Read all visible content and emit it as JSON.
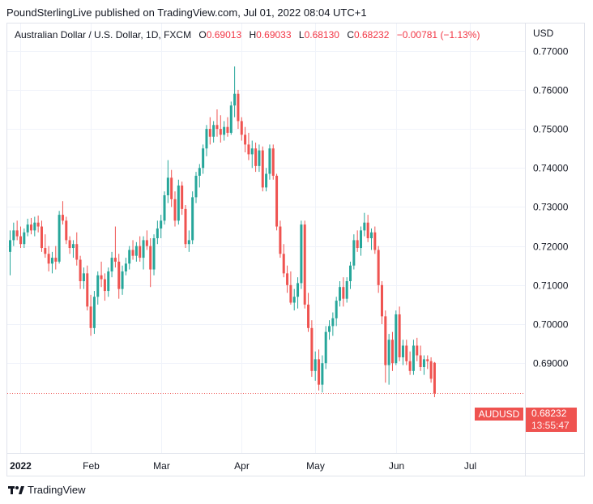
{
  "header": {
    "published": "PoundSterlingLive published on TradingView.com, Jul 01, 2022 08:04 UTC+1"
  },
  "legend": {
    "symbol": "Australian Dollar / U.S. Dollar, 1D, FXCM",
    "o_label": "O",
    "o": "0.69013",
    "h_label": "H",
    "h": "0.69033",
    "l_label": "L",
    "l": "0.68130",
    "c_label": "C",
    "c": "0.68232",
    "change": "−0.00781 (−1.13%)"
  },
  "axis": {
    "currency": "USD"
  },
  "last_price": {
    "symbol": "AUDUSD",
    "price": "0.68232",
    "countdown": "13:55:47"
  },
  "footer": {
    "brand": "TradingView"
  },
  "colors": {
    "up": "#26a69a",
    "down": "#ef5350",
    "grid": "#f0f3fa",
    "text": "#131722"
  },
  "chart_data": {
    "type": "candlestick",
    "ylim": [
      0.667,
      0.777
    ],
    "y_ticks": [
      "0.77000",
      "0.76000",
      "0.75000",
      "0.74000",
      "0.73000",
      "0.72000",
      "0.71000",
      "0.70000",
      "0.69000"
    ],
    "x_labels": [
      {
        "label": "2022",
        "index": 3
      },
      {
        "label": "Feb",
        "index": 23
      },
      {
        "label": "Mar",
        "index": 43
      },
      {
        "label": "Apr",
        "index": 66
      },
      {
        "label": "May",
        "index": 87
      },
      {
        "label": "Jun",
        "index": 110
      },
      {
        "label": "Jul",
        "index": 131
      }
    ],
    "ohlc": [
      [
        0.7185,
        0.724,
        0.7125,
        0.7215
      ],
      [
        0.7215,
        0.726,
        0.72,
        0.724
      ],
      [
        0.724,
        0.7265,
        0.7215,
        0.7225
      ],
      [
        0.7225,
        0.725,
        0.7195,
        0.7205
      ],
      [
        0.7205,
        0.7245,
        0.7195,
        0.7235
      ],
      [
        0.7235,
        0.727,
        0.7225,
        0.7255
      ],
      [
        0.7255,
        0.7272,
        0.723,
        0.724
      ],
      [
        0.724,
        0.7275,
        0.7225,
        0.726
      ],
      [
        0.726,
        0.7278,
        0.7235,
        0.725
      ],
      [
        0.725,
        0.7265,
        0.7185,
        0.7195
      ],
      [
        0.7195,
        0.723,
        0.717,
        0.718
      ],
      [
        0.718,
        0.72,
        0.7135,
        0.7155
      ],
      [
        0.7155,
        0.7185,
        0.713,
        0.717
      ],
      [
        0.717,
        0.72,
        0.714,
        0.716
      ],
      [
        0.716,
        0.729,
        0.7155,
        0.728
      ],
      [
        0.728,
        0.7315,
        0.7255,
        0.7265
      ],
      [
        0.7265,
        0.7275,
        0.7205,
        0.7215
      ],
      [
        0.7215,
        0.7225,
        0.718,
        0.7195
      ],
      [
        0.7195,
        0.7215,
        0.717,
        0.7205
      ],
      [
        0.7205,
        0.7235,
        0.715,
        0.7165
      ],
      [
        0.7165,
        0.7175,
        0.709,
        0.711
      ],
      [
        0.711,
        0.7145,
        0.709,
        0.713
      ],
      [
        0.713,
        0.715,
        0.7035,
        0.7045
      ],
      [
        0.7045,
        0.7075,
        0.697,
        0.699
      ],
      [
        0.699,
        0.7085,
        0.6975,
        0.707
      ],
      [
        0.707,
        0.7135,
        0.705,
        0.7125
      ],
      [
        0.7125,
        0.716,
        0.7095,
        0.7115
      ],
      [
        0.7115,
        0.713,
        0.706,
        0.7085
      ],
      [
        0.7085,
        0.7145,
        0.707,
        0.7135
      ],
      [
        0.7135,
        0.7185,
        0.712,
        0.717
      ],
      [
        0.717,
        0.725,
        0.7145,
        0.716
      ],
      [
        0.716,
        0.718,
        0.7065,
        0.709
      ],
      [
        0.709,
        0.715,
        0.7075,
        0.7135
      ],
      [
        0.7135,
        0.717,
        0.7125,
        0.7155
      ],
      [
        0.7155,
        0.72,
        0.714,
        0.719
      ],
      [
        0.719,
        0.7215,
        0.7165,
        0.7175
      ],
      [
        0.7175,
        0.721,
        0.716,
        0.72
      ],
      [
        0.72,
        0.7225,
        0.716,
        0.717
      ],
      [
        0.717,
        0.7225,
        0.714,
        0.7215
      ],
      [
        0.7215,
        0.724,
        0.719,
        0.72
      ],
      [
        0.72,
        0.722,
        0.7095,
        0.714
      ],
      [
        0.714,
        0.723,
        0.7125,
        0.722
      ],
      [
        0.722,
        0.7265,
        0.7205,
        0.7245
      ],
      [
        0.7245,
        0.728,
        0.722,
        0.7265
      ],
      [
        0.7265,
        0.734,
        0.7255,
        0.733
      ],
      [
        0.733,
        0.742,
        0.731,
        0.7375
      ],
      [
        0.7375,
        0.7395,
        0.73,
        0.732
      ],
      [
        0.732,
        0.734,
        0.725,
        0.7265
      ],
      [
        0.7265,
        0.737,
        0.7255,
        0.7355
      ],
      [
        0.7355,
        0.7365,
        0.728,
        0.7295
      ],
      [
        0.7295,
        0.7305,
        0.7195,
        0.7205
      ],
      [
        0.7205,
        0.724,
        0.7185,
        0.7215
      ],
      [
        0.7215,
        0.734,
        0.7205,
        0.7325
      ],
      [
        0.7325,
        0.739,
        0.731,
        0.738
      ],
      [
        0.738,
        0.741,
        0.735,
        0.74
      ],
      [
        0.74,
        0.746,
        0.7385,
        0.745
      ],
      [
        0.745,
        0.751,
        0.743,
        0.75
      ],
      [
        0.75,
        0.753,
        0.746,
        0.748
      ],
      [
        0.748,
        0.752,
        0.7465,
        0.751
      ],
      [
        0.751,
        0.755,
        0.748,
        0.75
      ],
      [
        0.75,
        0.7535,
        0.7465,
        0.7485
      ],
      [
        0.7485,
        0.752,
        0.747,
        0.7505
      ],
      [
        0.7505,
        0.753,
        0.748,
        0.749
      ],
      [
        0.749,
        0.757,
        0.7485,
        0.756
      ],
      [
        0.756,
        0.766,
        0.753,
        0.759
      ],
      [
        0.759,
        0.76,
        0.75,
        0.752
      ],
      [
        0.752,
        0.753,
        0.747,
        0.7485
      ],
      [
        0.7485,
        0.7505,
        0.744,
        0.746
      ],
      [
        0.746,
        0.749,
        0.742,
        0.7435
      ],
      [
        0.7435,
        0.747,
        0.74,
        0.745
      ],
      [
        0.745,
        0.7465,
        0.739,
        0.7405
      ],
      [
        0.7405,
        0.746,
        0.739,
        0.7445
      ],
      [
        0.7445,
        0.7455,
        0.734,
        0.735
      ],
      [
        0.735,
        0.74,
        0.734,
        0.7385
      ],
      [
        0.7385,
        0.746,
        0.737,
        0.745
      ],
      [
        0.745,
        0.746,
        0.737,
        0.738
      ],
      [
        0.738,
        0.7385,
        0.724,
        0.725
      ],
      [
        0.725,
        0.7265,
        0.717,
        0.718
      ],
      [
        0.718,
        0.7205,
        0.712,
        0.713
      ],
      [
        0.713,
        0.715,
        0.708,
        0.71
      ],
      [
        0.71,
        0.7135,
        0.705,
        0.7055
      ],
      [
        0.7055,
        0.709,
        0.7035,
        0.707
      ],
      [
        0.707,
        0.712,
        0.704,
        0.7105
      ],
      [
        0.7105,
        0.7265,
        0.709,
        0.7255
      ],
      [
        0.7255,
        0.7265,
        0.704,
        0.705
      ],
      [
        0.705,
        0.708,
        0.698,
        0.699
      ],
      [
        0.699,
        0.701,
        0.6865,
        0.688
      ],
      [
        0.688,
        0.693,
        0.6855,
        0.691
      ],
      [
        0.691,
        0.6935,
        0.683,
        0.6845
      ],
      [
        0.6845,
        0.692,
        0.6825,
        0.69
      ],
      [
        0.69,
        0.6995,
        0.6885,
        0.698
      ],
      [
        0.698,
        0.701,
        0.696,
        0.6995
      ],
      [
        0.6995,
        0.703,
        0.697,
        0.7015
      ],
      [
        0.7015,
        0.707,
        0.6995,
        0.706
      ],
      [
        0.706,
        0.711,
        0.7045,
        0.7095
      ],
      [
        0.7095,
        0.712,
        0.7045,
        0.7065
      ],
      [
        0.7065,
        0.712,
        0.7055,
        0.711
      ],
      [
        0.711,
        0.716,
        0.709,
        0.715
      ],
      [
        0.715,
        0.723,
        0.714,
        0.7215
      ],
      [
        0.7215,
        0.724,
        0.7185,
        0.7195
      ],
      [
        0.7195,
        0.725,
        0.7175,
        0.724
      ],
      [
        0.724,
        0.7285,
        0.7225,
        0.726
      ],
      [
        0.726,
        0.728,
        0.721,
        0.722
      ],
      [
        0.722,
        0.7245,
        0.719,
        0.7235
      ],
      [
        0.7235,
        0.725,
        0.718,
        0.719
      ],
      [
        0.719,
        0.72,
        0.708,
        0.71
      ],
      [
        0.71,
        0.711,
        0.7,
        0.702
      ],
      [
        0.702,
        0.7035,
        0.685,
        0.6895
      ],
      [
        0.6895,
        0.6975,
        0.6845,
        0.696
      ],
      [
        0.696,
        0.698,
        0.688,
        0.69
      ],
      [
        0.69,
        0.7035,
        0.6895,
        0.7025
      ],
      [
        0.7025,
        0.7045,
        0.6905,
        0.6915
      ],
      [
        0.6915,
        0.696,
        0.6895,
        0.6945
      ],
      [
        0.6945,
        0.696,
        0.6895,
        0.6905
      ],
      [
        0.6905,
        0.693,
        0.687,
        0.688
      ],
      [
        0.688,
        0.696,
        0.687,
        0.6945
      ],
      [
        0.6945,
        0.6965,
        0.6905,
        0.692
      ],
      [
        0.692,
        0.6945,
        0.688,
        0.689
      ],
      [
        0.689,
        0.692,
        0.687,
        0.691
      ],
      [
        0.691,
        0.692,
        0.6885,
        0.6905
      ],
      [
        0.6905,
        0.6915,
        0.685,
        0.686
      ],
      [
        0.6901,
        0.6903,
        0.6813,
        0.6823
      ]
    ]
  }
}
